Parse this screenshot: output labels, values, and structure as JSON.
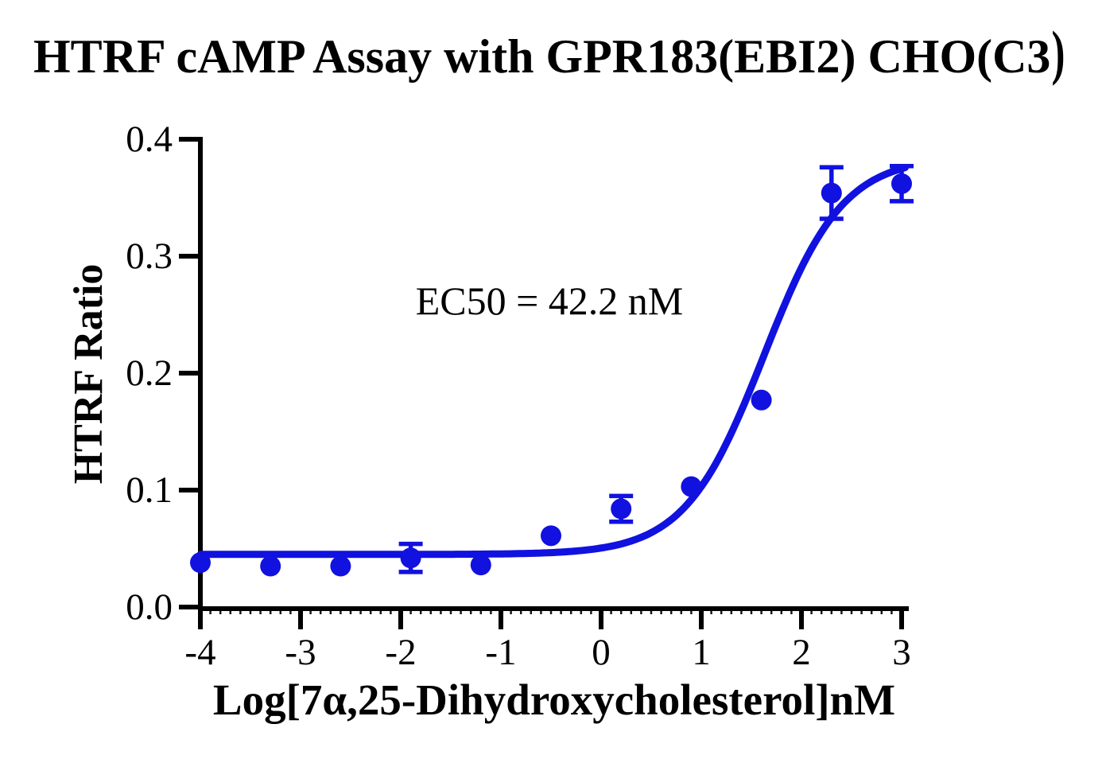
{
  "title": {
    "text": "HTRF cAMP Assay with GPR183(EBI2) CHO(C3",
    "close_paren": ")"
  },
  "annotation": {
    "ec50_label": "EC50 = 42.2 nM"
  },
  "colors": {
    "series_blue": "#1111e0",
    "axis_black": "#000000"
  },
  "chart_data": {
    "type": "scatter",
    "title": "HTRF cAMP Assay with GPR183(EBI2) CHO(C3)",
    "xlabel": "Log[7α,25-Dihydroxycholesterol]nM",
    "ylabel": "HTRF Ratio",
    "xlim": [
      -4,
      3
    ],
    "ylim": [
      0.0,
      0.4
    ],
    "grid": false,
    "legend": false,
    "x_ticks": [
      -4,
      -3,
      -2,
      -1,
      0,
      1,
      2,
      3
    ],
    "x_tick_labels": [
      "-4",
      "-3",
      "-2",
      "-1",
      "0",
      "1",
      "2",
      "3"
    ],
    "x_minor_tick_step": 0.1,
    "y_ticks": [
      0.0,
      0.1,
      0.2,
      0.3,
      0.4
    ],
    "y_tick_labels": [
      "0.0",
      "0.1",
      "0.2",
      "0.3",
      "0.4"
    ],
    "series": [
      {
        "name": "7α,25-Dihydroxycholesterol",
        "color": "#1111e0",
        "marker": "circle",
        "points": [
          {
            "x": -4.0,
            "y": 0.038
          },
          {
            "x": -3.3,
            "y": 0.035
          },
          {
            "x": -2.6,
            "y": 0.035
          },
          {
            "x": -1.9,
            "y": 0.042,
            "err": 0.012
          },
          {
            "x": -1.2,
            "y": 0.036
          },
          {
            "x": -0.5,
            "y": 0.061
          },
          {
            "x": 0.2,
            "y": 0.084,
            "err": 0.011
          },
          {
            "x": 0.9,
            "y": 0.103
          },
          {
            "x": 1.6,
            "y": 0.177
          },
          {
            "x": 2.3,
            "y": 0.354,
            "err": 0.022
          },
          {
            "x": 3.0,
            "y": 0.362,
            "err": 0.015
          }
        ]
      }
    ],
    "fit": {
      "model": "sigmoidal-dose-response",
      "bottom": 0.045,
      "top": 0.385,
      "log_ec50": 1.625,
      "hill_slope": 1.1,
      "ec50_nM": 42.2
    }
  }
}
